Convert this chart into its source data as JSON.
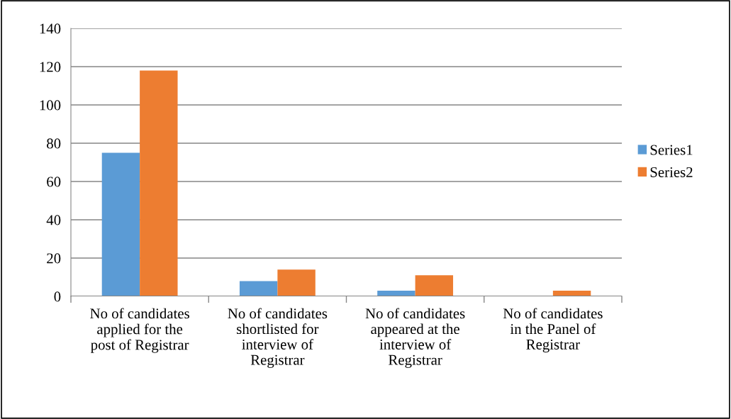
{
  "chart_data": {
    "type": "bar",
    "categories": [
      "No of candidates\napplied for the\npost of Registrar",
      "No of candidates\nshortlisted for\ninterview of\nRegistrar",
      "No of candidates\nappeared at the\ninterview of\nRegistrar",
      "No of candidates\nin the Panel of\nRegistrar"
    ],
    "series": [
      {
        "name": "Series1",
        "color": "#5b9bd5",
        "values": [
          75,
          8,
          3,
          0
        ]
      },
      {
        "name": "Series2",
        "color": "#ed7d31",
        "values": [
          118,
          14,
          11,
          3
        ]
      }
    ],
    "ylim": [
      0,
      140
    ],
    "yticks": [
      0,
      20,
      40,
      60,
      80,
      100,
      120,
      140
    ],
    "grid": "y",
    "legend": "right"
  }
}
